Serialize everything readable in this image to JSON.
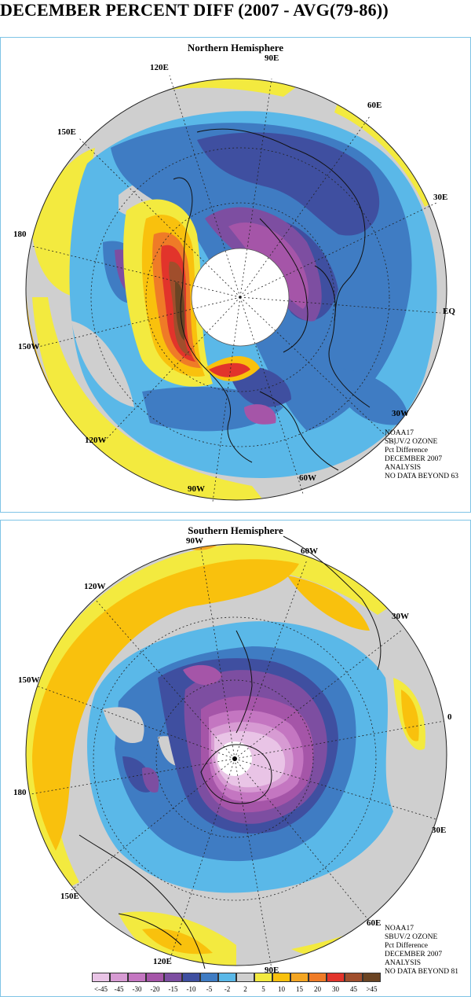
{
  "title": "DECEMBER PERCENT DIFF (2007 - AVG(79-86))",
  "palette": {
    "c_n45": "#e9c4e6",
    "c_n30a": "#d79bd3",
    "c_n30": "#c476c1",
    "c_n20": "#a555a8",
    "c_n15": "#7d4ea1",
    "c_n10": "#3f4fa0",
    "c_n5": "#3f7cc3",
    "c_n2": "#5ab8e8",
    "c_0": "#cfcfcf",
    "c_2": "#f3ea3f",
    "c_5": "#f9c10d",
    "c_10": "#f4a623",
    "c_15": "#ef7b27",
    "c_20": "#e2342b",
    "c_30": "#a04e2c",
    "c_45": "#6b4423"
  },
  "north": {
    "heading": "Northern Hemisphere",
    "longitude_labels": [
      "90E",
      "60E",
      "30E",
      "EQ",
      "30W",
      "60W",
      "90W",
      "120W",
      "150W",
      "180",
      "150E",
      "120E"
    ],
    "notes": [
      "NOAA17",
      "SBUV/2 OZONE",
      "Pct Difference",
      "DECEMBER 2007",
      "ANALYSIS",
      "NO DATA BEYOND  63"
    ]
  },
  "south": {
    "heading": "Southern Hemisphere",
    "longitude_labels": [
      "90W",
      "60W",
      "30W",
      "0",
      "30E",
      "60E",
      "90E",
      "120E",
      "150E",
      "180",
      "150W",
      "120W"
    ],
    "notes": [
      "NOAA17",
      "SBUV/2 OZONE",
      "Pct Difference",
      "DECEMBER 2007",
      "ANALYSIS",
      "NO DATA BEYOND  81"
    ]
  },
  "colorbar": {
    "labels": [
      "<-45",
      "-45",
      "-30",
      "-20",
      "-15",
      "-10",
      "-5",
      "-2",
      "2",
      "5",
      "10",
      "15",
      "20",
      "30",
      "45",
      ">45"
    ],
    "colors": [
      "#e9c4e6",
      "#d79bd3",
      "#c476c1",
      "#a555a8",
      "#7d4ea1",
      "#3f4fa0",
      "#3f7cc3",
      "#5ab8e8",
      "#cfcfcf",
      "#f3ea3f",
      "#f9c10d",
      "#f4a623",
      "#ef7b27",
      "#e2342b",
      "#a04e2c",
      "#6b4423"
    ]
  }
}
